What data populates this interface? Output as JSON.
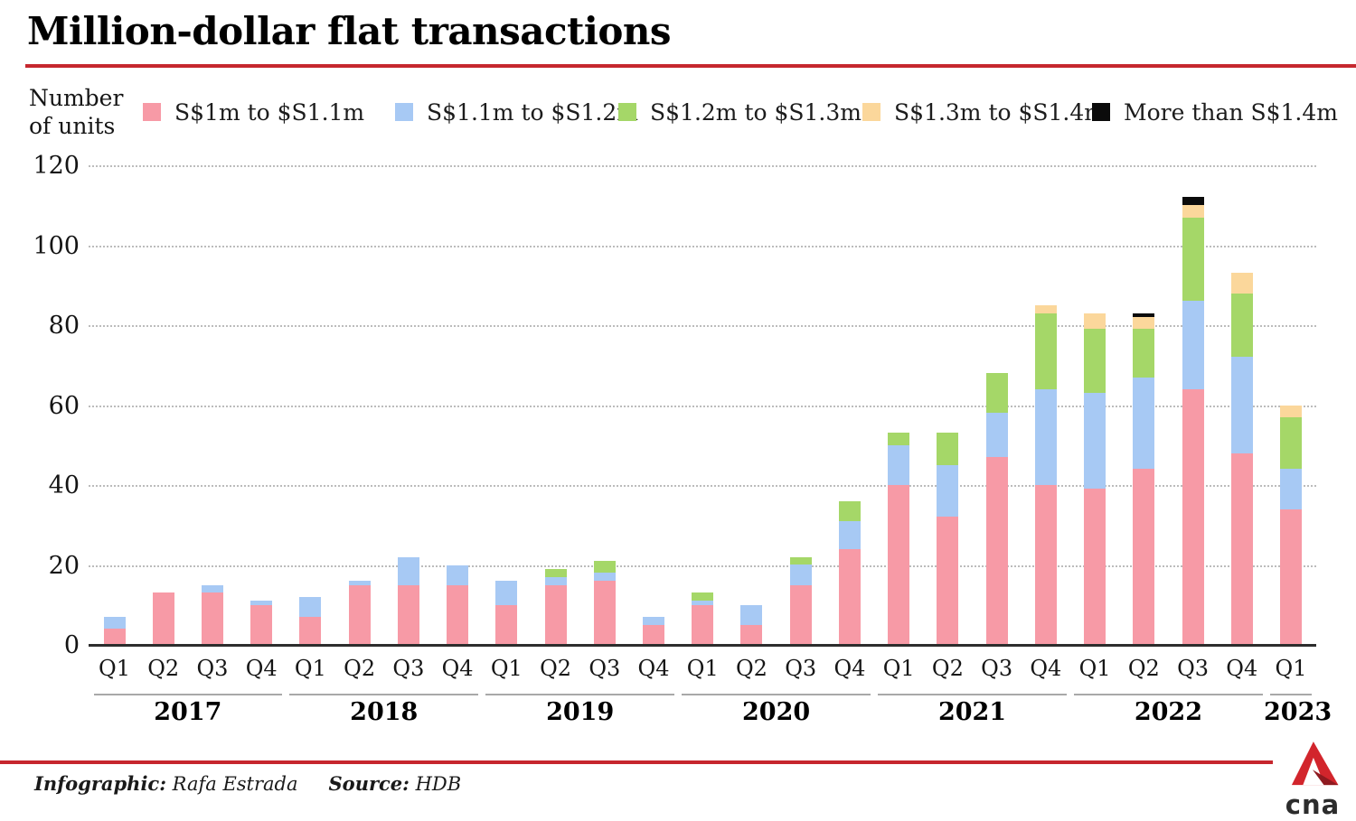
{
  "header": {
    "title": "Million-dollar flat transactions"
  },
  "y_axis": {
    "label_line1": "Number",
    "label_line2": "of units"
  },
  "legend": {
    "items": [
      {
        "label": "S$1m to $S1.1m",
        "color": "#f79aa6"
      },
      {
        "label": "S$1.1m to $S1.2m",
        "color": "#a7c9f4"
      },
      {
        "label": "S$1.2m to $S1.3m",
        "color": "#a5d768"
      },
      {
        "label": "S$1.3m to $S1.4m",
        "color": "#fbd79b"
      },
      {
        "label": "More than S$1.4m",
        "color": "#0b0b0b"
      }
    ]
  },
  "chart_data": {
    "type": "bar",
    "stacked": true,
    "title": "Million-dollar flat transactions",
    "ylabel": "Number of units",
    "ylim": [
      0,
      120
    ],
    "yticks": [
      0,
      20,
      40,
      60,
      80,
      100,
      120
    ],
    "grid": "horizontal-dotted",
    "legend_position": "top",
    "categories": [
      "Q1 2017",
      "Q2 2017",
      "Q3 2017",
      "Q4 2017",
      "Q1 2018",
      "Q2 2018",
      "Q3 2018",
      "Q4 2018",
      "Q1 2019",
      "Q2 2019",
      "Q3 2019",
      "Q4 2019",
      "Q1 2020",
      "Q2 2020",
      "Q3 2020",
      "Q4 2020",
      "Q1 2021",
      "Q2 2021",
      "Q3 2021",
      "Q4 2021",
      "Q1 2022",
      "Q2 2022",
      "Q3 2022",
      "Q4 2022",
      "Q1 2023"
    ],
    "year_groups": [
      {
        "year": "2017",
        "quarters": [
          "Q1",
          "Q2",
          "Q3",
          "Q4"
        ]
      },
      {
        "year": "2018",
        "quarters": [
          "Q1",
          "Q2",
          "Q3",
          "Q4"
        ]
      },
      {
        "year": "2019",
        "quarters": [
          "Q1",
          "Q2",
          "Q3",
          "Q4"
        ]
      },
      {
        "year": "2020",
        "quarters": [
          "Q1",
          "Q2",
          "Q3",
          "Q4"
        ]
      },
      {
        "year": "2021",
        "quarters": [
          "Q1",
          "Q2",
          "Q3",
          "Q4"
        ]
      },
      {
        "year": "2022",
        "quarters": [
          "Q1",
          "Q2",
          "Q3",
          "Q4"
        ]
      },
      {
        "year": "2023",
        "quarters": [
          "Q1"
        ]
      }
    ],
    "series": [
      {
        "name": "S$1m to $S1.1m",
        "color": "#f79aa6",
        "values": [
          4,
          13,
          13,
          10,
          7,
          15,
          15,
          15,
          10,
          15,
          16,
          5,
          10,
          5,
          15,
          24,
          40,
          32,
          47,
          40,
          39,
          44,
          64,
          48,
          34
        ]
      },
      {
        "name": "S$1.1m to $S1.2m",
        "color": "#a7c9f4",
        "values": [
          3,
          0,
          2,
          1,
          5,
          1,
          7,
          5,
          6,
          2,
          2,
          2,
          1,
          5,
          5,
          7,
          10,
          13,
          11,
          24,
          24,
          23,
          22,
          24,
          10
        ]
      },
      {
        "name": "S$1.2m to $S1.3m",
        "color": "#a5d768",
        "values": [
          0,
          0,
          0,
          0,
          0,
          0,
          0,
          0,
          0,
          2,
          3,
          0,
          2,
          0,
          2,
          5,
          3,
          8,
          10,
          19,
          16,
          12,
          21,
          16,
          13
        ]
      },
      {
        "name": "S$1.3m to $S1.4m",
        "color": "#fbd79b",
        "values": [
          0,
          0,
          0,
          0,
          0,
          0,
          0,
          0,
          0,
          0,
          0,
          0,
          0,
          0,
          0,
          0,
          0,
          0,
          0,
          2,
          4,
          3,
          3,
          5,
          3
        ]
      },
      {
        "name": "More than S$1.4m",
        "color": "#0b0b0b",
        "values": [
          0,
          0,
          0,
          0,
          0,
          0,
          0,
          0,
          0,
          0,
          0,
          0,
          0,
          0,
          0,
          0,
          0,
          0,
          0,
          0,
          0,
          1,
          2,
          0,
          0
        ]
      }
    ]
  },
  "footer": {
    "infographic_label": "Infographic:",
    "infographic_value": "Rafa Estrada",
    "source_label": "Source:",
    "source_value": "HDB",
    "logo_text": "cna"
  },
  "colors": {
    "accent_red": "#c6272e",
    "axis": "#2d2d2d",
    "gridline": "#bcbcbc"
  }
}
